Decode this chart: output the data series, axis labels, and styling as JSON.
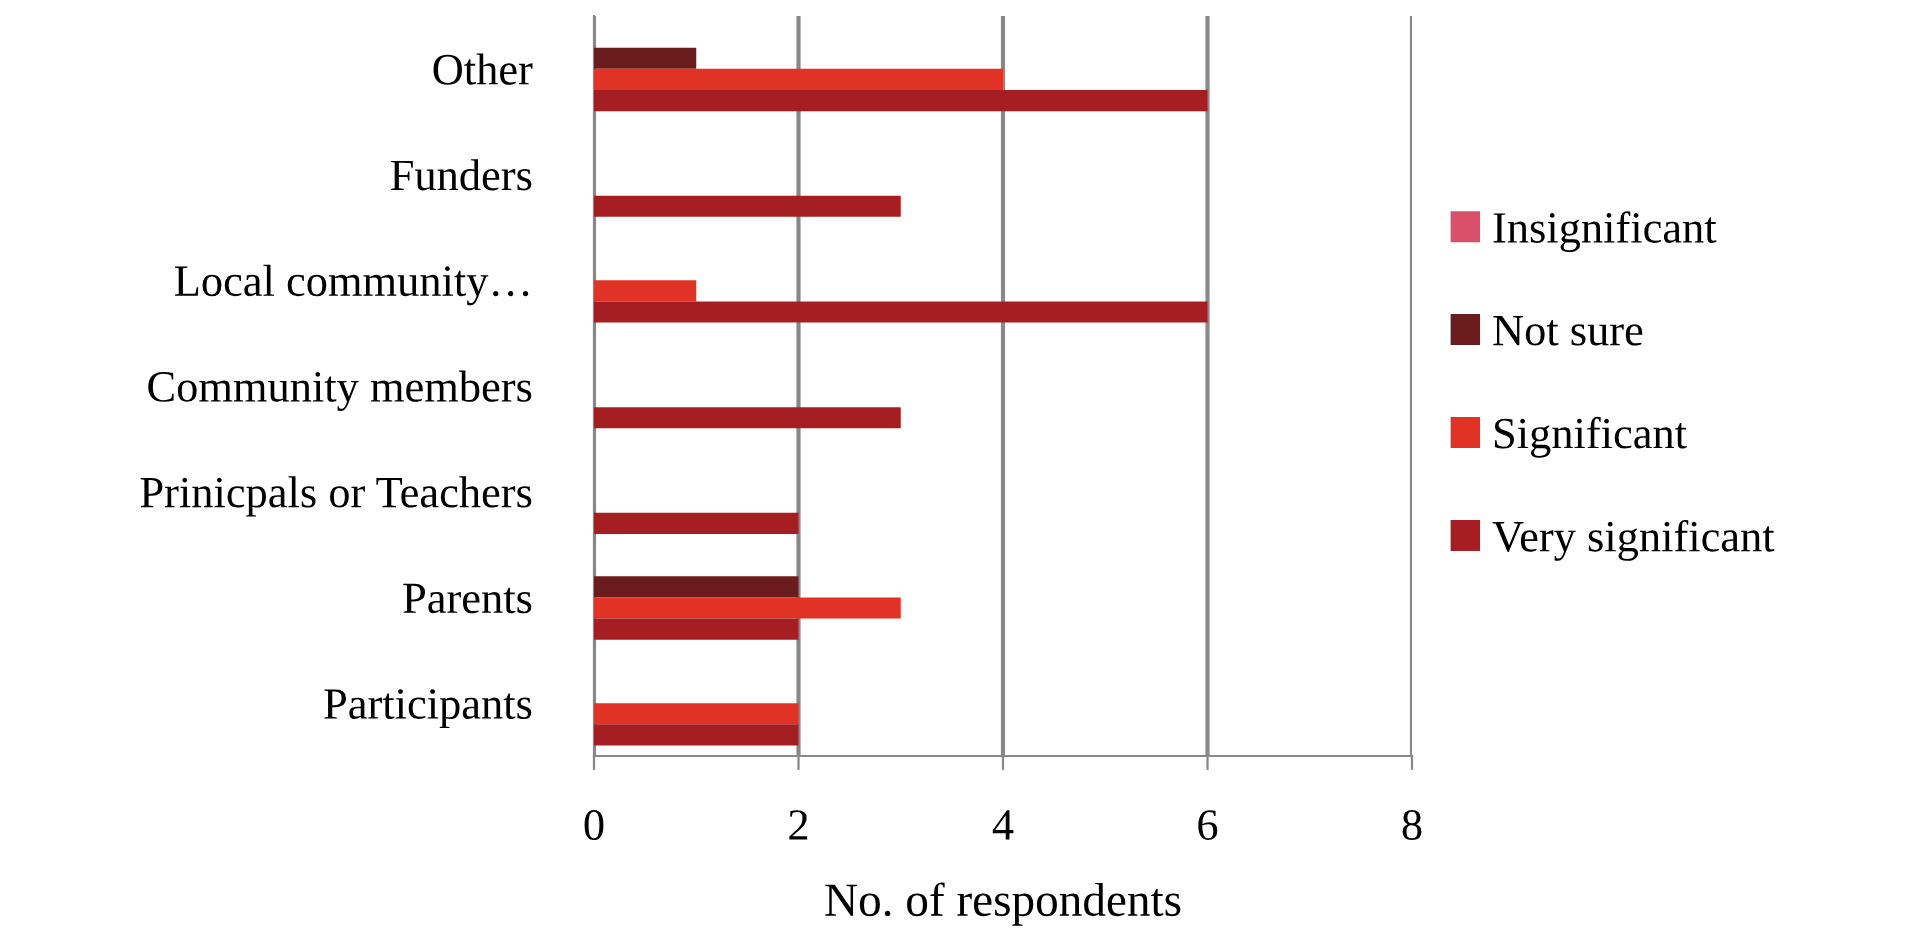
{
  "chart_data": {
    "type": "bar",
    "orientation": "horizontal",
    "xlabel": "No. of respondents",
    "categories": [
      "Other",
      "Funders",
      "Local community…",
      "Community members",
      "Prinicpals or Teachers",
      "Parents",
      "Participants"
    ],
    "series": [
      {
        "name": "Insignificant",
        "color": "#d9506a",
        "values": [
          null,
          null,
          null,
          null,
          null,
          null,
          null
        ]
      },
      {
        "name": "Not sure",
        "color": "#6b1c1c",
        "values": [
          1,
          null,
          null,
          null,
          null,
          2,
          null
        ]
      },
      {
        "name": "Significant",
        "color": "#e03326",
        "values": [
          4,
          null,
          1,
          null,
          null,
          3,
          2
        ]
      },
      {
        "name": "Very significant",
        "color": "#a51f22",
        "values": [
          6,
          3,
          6,
          3,
          2,
          2,
          2
        ]
      }
    ],
    "xlim": [
      0,
      8
    ],
    "xticks": [
      0,
      2,
      4,
      6,
      8
    ],
    "grid": "x",
    "legend": "right"
  }
}
